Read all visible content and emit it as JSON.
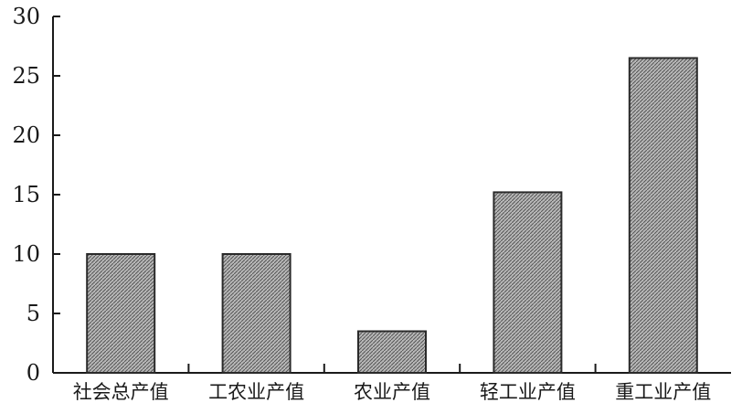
{
  "chart_data": {
    "type": "bar",
    "title": "",
    "xlabel": "",
    "ylabel": "",
    "categories": [
      "社会总产值",
      "工农业产值",
      "农业产值",
      "轻工业产值",
      "重工业产值"
    ],
    "values": [
      10,
      10,
      3.5,
      15.2,
      26.5
    ],
    "ylim": [
      0,
      30
    ],
    "yticks": [
      0,
      5,
      10,
      15,
      20,
      25,
      30
    ],
    "grid": false,
    "legend": "none",
    "bar_fill": "#8a8a8a"
  }
}
